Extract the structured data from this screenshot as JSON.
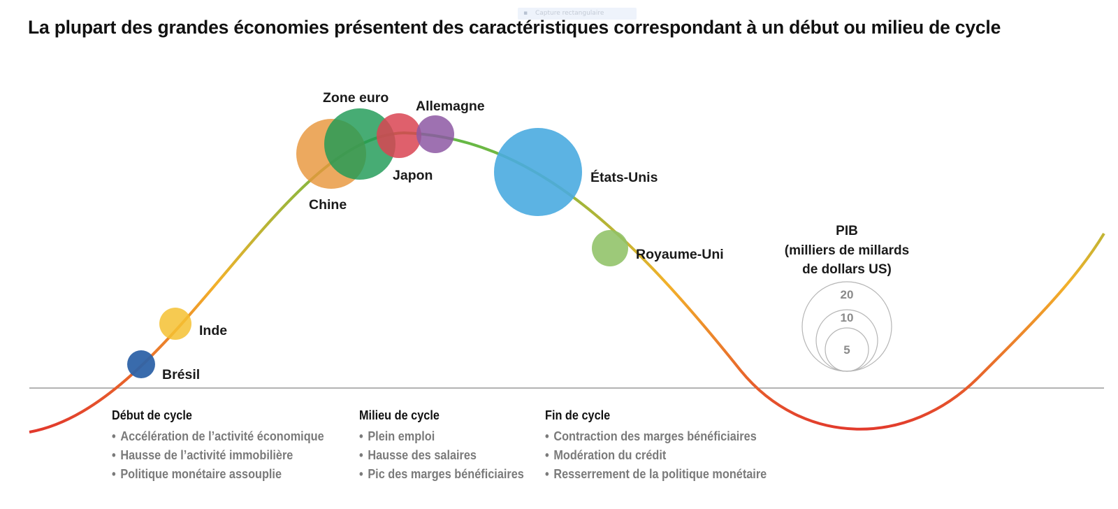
{
  "page": {
    "title": "La plupart des grandes économies présentent des caractéristiques correspondant à un début ou milieu de cycle",
    "capture_overlay": "Capture rectangulaire"
  },
  "economies": [
    {
      "id": "chine",
      "label": "Chine",
      "color": "#e8963c"
    },
    {
      "id": "zone-euro",
      "label": "Zone euro",
      "color": "#1f9a55"
    },
    {
      "id": "japon",
      "label": "Japon",
      "color": "#d94452"
    },
    {
      "id": "allemagne",
      "label": "Allemagne",
      "color": "#8d58a3"
    },
    {
      "id": "etats-unis",
      "label": "États-Unis",
      "color": "#4aabe0"
    },
    {
      "id": "royaume-uni",
      "label": "Royaume-Uni",
      "color": "#8fc267"
    },
    {
      "id": "inde",
      "label": "Inde",
      "color": "#f4c133"
    },
    {
      "id": "bresil",
      "label": "Brésil",
      "color": "#2e63a8"
    }
  ],
  "legend": {
    "title_lines": [
      "PIB",
      "(milliers de millards",
      "de dollars US)"
    ],
    "sizes": [
      "20",
      "10",
      "5"
    ]
  },
  "phases": [
    {
      "title": "Début de cycle",
      "items": [
        "Accélération de l’activité économique",
        "Hausse de l’activité immobilière",
        "Politique monétaire assouplie"
      ]
    },
    {
      "title": "Milieu de cycle",
      "items": [
        "Plein emploi",
        "Hausse des salaires",
        "Pic des marges bénéficiaires"
      ]
    },
    {
      "title": "Fin de cycle",
      "items": [
        "Contraction des marges bénéficiaires",
        "Modération du crédit",
        "Resserrement de la politique monétaire"
      ]
    }
  ],
  "bullet": "•",
  "colors": {
    "curve_peak": "#5db947",
    "curve_mid": "#f2b12a",
    "curve_trough": "#e1362c",
    "baseline": "#9a9a9a",
    "legend_circles": "#b5b5b5",
    "bullet_text": "#7a7a7a"
  }
}
